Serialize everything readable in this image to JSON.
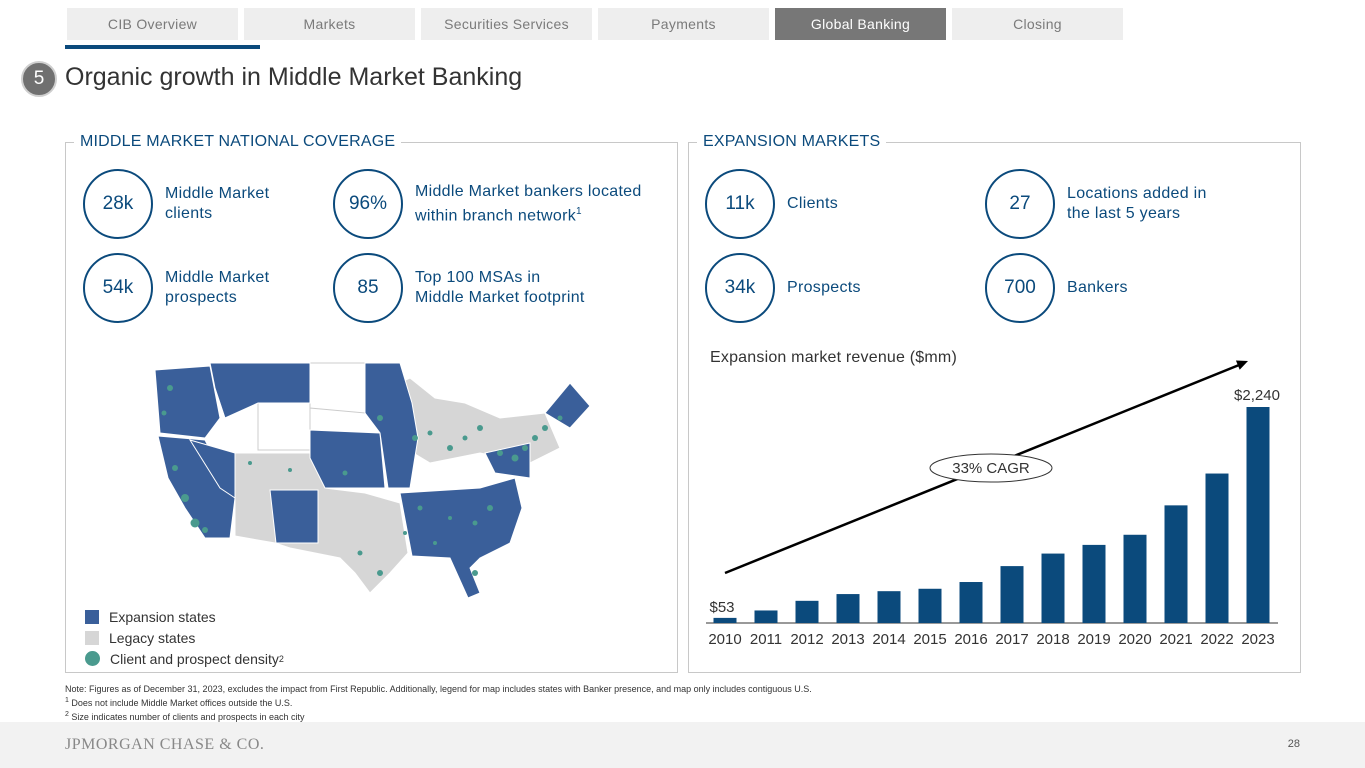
{
  "nav": {
    "tabs": [
      {
        "label": "CIB Overview"
      },
      {
        "label": "Markets"
      },
      {
        "label": "Securities Services"
      },
      {
        "label": "Payments"
      },
      {
        "label": "Global Banking"
      },
      {
        "label": "Closing"
      }
    ],
    "active_tab": "Global Banking"
  },
  "header": {
    "section_number": "5",
    "title": "Organic growth in Middle Market Banking"
  },
  "left_panel": {
    "title": "MIDDLE MARKET NATIONAL COVERAGE",
    "stats": [
      {
        "value": "28k",
        "line1": "Middle Market",
        "line2": "clients"
      },
      {
        "value": "96%",
        "line1": "Middle Market bankers located",
        "line2": "within branch network",
        "sup": "1"
      },
      {
        "value": "54k",
        "line1": "Middle Market",
        "line2": "prospects"
      },
      {
        "value": "85",
        "line1": "Top 100 MSAs in",
        "line2": "Middle Market footprint"
      }
    ],
    "legend": {
      "expansion": "Expansion states",
      "legacy": "Legacy states",
      "density": "Client and prospect density",
      "density_sup": "2"
    }
  },
  "right_panel": {
    "title": "EXPANSION MARKETS",
    "stats": [
      {
        "value": "11k",
        "line1": "Clients",
        "line2": ""
      },
      {
        "value": "27",
        "line1": "Locations added in",
        "line2": "the last 5 years"
      },
      {
        "value": "34k",
        "line1": "Prospects",
        "line2": ""
      },
      {
        "value": "700",
        "line1": "Bankers",
        "line2": ""
      }
    ]
  },
  "colors": {
    "navy": "#0b4a7c",
    "expansion_state": "#3a5f9a",
    "legacy_state": "#d6d6d6",
    "density_dot": "#4a9a8e",
    "bar": "#0b4a7c"
  },
  "chart_data": {
    "type": "bar",
    "title": "Expansion market revenue ($mm)",
    "categories": [
      "2010",
      "2011",
      "2012",
      "2013",
      "2014",
      "2015",
      "2016",
      "2017",
      "2018",
      "2019",
      "2020",
      "2021",
      "2022",
      "2023"
    ],
    "values": [
      53,
      130,
      230,
      300,
      330,
      355,
      425,
      590,
      720,
      810,
      915,
      1220,
      1550,
      2240
    ],
    "data_labels": {
      "first": "$53",
      "last": "$2,240"
    },
    "annotation": "33% CAGR",
    "ylim": [
      0,
      2240
    ],
    "grid": false
  },
  "notes": {
    "main": "Note: Figures as of December 31, 2023, excludes the impact from First Republic. Additionally, legend for map includes states with Banker presence, and map only includes contiguous U.S.",
    "n1_sup": "1",
    "n1": "Does not include Middle Market offices outside the U.S.",
    "n2_sup": "2",
    "n2": "Size indicates number of clients and prospects in each city"
  },
  "footer": {
    "logo": "JPMORGAN CHASE & CO.",
    "page_number": "28"
  }
}
